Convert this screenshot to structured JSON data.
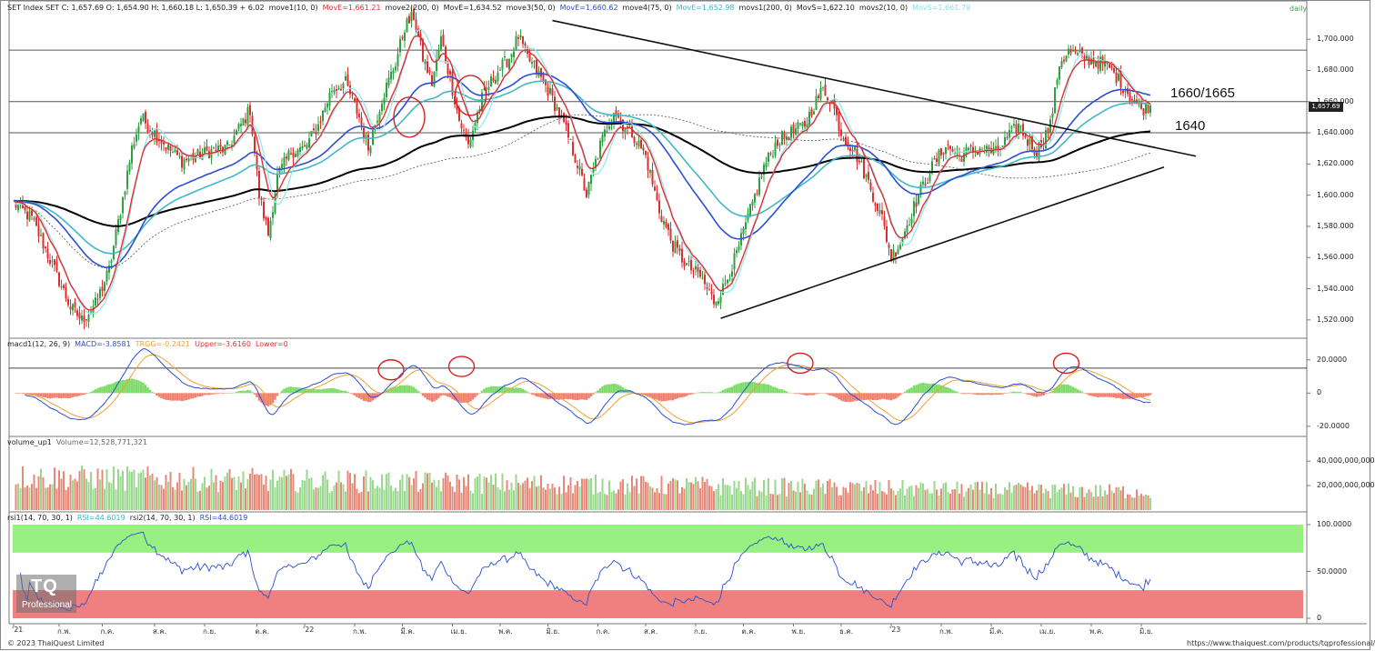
{
  "window": {
    "timeframe": "daily"
  },
  "headers": {
    "price": {
      "items": [
        {
          "text": "SET Index SET C: 1,657.69 O: 1,654.90 H: 1,660.18 L: 1,650.39 + 6.02",
          "color": "#222222"
        },
        {
          "text": "move1(10, 0)",
          "color": "#222222"
        },
        {
          "text": "MovE=1,661.21",
          "color": "#e03030"
        },
        {
          "text": "move2(200, 0)",
          "color": "#222222"
        },
        {
          "text": "MovE=1,634.52",
          "color": "#222222"
        },
        {
          "text": "move3(50, 0)",
          "color": "#222222"
        },
        {
          "text": "MovE=1,660.62",
          "color": "#2a4fd0"
        },
        {
          "text": "move4(75, 0)",
          "color": "#222222"
        },
        {
          "text": "MovE=1,652.98",
          "color": "#3fb8c8"
        },
        {
          "text": "movs1(200, 0)",
          "color": "#222222"
        },
        {
          "text": "MovS=1,622.10",
          "color": "#222222"
        },
        {
          "text": "movs2(10, 0)",
          "color": "#222222"
        },
        {
          "text": "MovS=1,661.79",
          "color": "#7ee0f0"
        }
      ]
    },
    "macd": {
      "items": [
        {
          "text": "macd1(12, 26, 9)",
          "color": "#222222"
        },
        {
          "text": "MACD=-3.8581",
          "color": "#2a4fd0"
        },
        {
          "text": "TRGG=-0.2421",
          "color": "#f0a030"
        },
        {
          "text": "Upper=-3.6160",
          "color": "#e03030"
        },
        {
          "text": "Lower=0",
          "color": "#e03030"
        }
      ]
    },
    "volume": {
      "items": [
        {
          "text": "volume_up1",
          "color": "#222222"
        },
        {
          "text": "Volume=12,528,771,321",
          "color": "#666666"
        }
      ]
    },
    "rsi": {
      "items": [
        {
          "text": "rsi1(14, 70, 30, 1)",
          "color": "#222222"
        },
        {
          "text": "RSI=44.6019",
          "color": "#3fb8c8"
        },
        {
          "text": "rsi2(14, 70, 30, 1)",
          "color": "#222222"
        },
        {
          "text": "RSI=44.6019",
          "color": "#2a4fd0"
        }
      ]
    }
  },
  "last_price_badge": "1,657.69",
  "annotations": {
    "resistance": "1660/1665",
    "support": "1640"
  },
  "axes": {
    "price": [
      {
        "v": 1700,
        "label": "1,700.000"
      },
      {
        "v": 1680,
        "label": "1,680.000"
      },
      {
        "v": 1660,
        "label": "1,660.000"
      },
      {
        "v": 1640,
        "label": "1,640.000"
      },
      {
        "v": 1620,
        "label": "1,620.000"
      },
      {
        "v": 1600,
        "label": "1,600.000"
      },
      {
        "v": 1580,
        "label": "1,580.000"
      },
      {
        "v": 1560,
        "label": "1,560.000"
      },
      {
        "v": 1540,
        "label": "1,540.000"
      },
      {
        "v": 1520,
        "label": "1,520.000"
      }
    ],
    "macd": [
      {
        "v": 20,
        "label": "20.0000"
      },
      {
        "v": 0,
        "label": "0"
      },
      {
        "v": -20,
        "label": "-20.0000"
      }
    ],
    "volume": [
      {
        "v": 40000000000,
        "label": "40,000,000,000"
      },
      {
        "v": 20000000000,
        "label": "20,000,000,000"
      }
    ],
    "rsi": [
      {
        "v": 100,
        "label": "100.0000"
      },
      {
        "v": 50,
        "label": "50.0000"
      },
      {
        "v": 0,
        "label": "0"
      }
    ],
    "x": [
      {
        "i": 0,
        "label": "'21"
      },
      {
        "i": 20,
        "label": "ก.พ."
      },
      {
        "i": 39,
        "label": "ก.ค."
      },
      {
        "i": 62,
        "label": "ส.ค."
      },
      {
        "i": 84,
        "label": "ก.ย."
      },
      {
        "i": 107,
        "label": "ต.ค."
      },
      {
        "i": 128,
        "label": "'22"
      },
      {
        "i": 150,
        "label": "ก.พ."
      },
      {
        "i": 171,
        "label": "มี.ค."
      },
      {
        "i": 193,
        "label": "เม.ย."
      },
      {
        "i": 214,
        "label": "พ.ค."
      },
      {
        "i": 235,
        "label": "มิ.ย."
      },
      {
        "i": 257,
        "label": "ก.ค."
      },
      {
        "i": 278,
        "label": "ส.ค."
      },
      {
        "i": 300,
        "label": "ก.ย."
      },
      {
        "i": 321,
        "label": "ต.ค."
      },
      {
        "i": 343,
        "label": "พ.ย."
      },
      {
        "i": 364,
        "label": "ธ.ค."
      },
      {
        "i": 386,
        "label": "'23"
      },
      {
        "i": 408,
        "label": "ก.พ."
      },
      {
        "i": 430,
        "label": "มี.ค."
      },
      {
        "i": 452,
        "label": "เม.ย."
      },
      {
        "i": 474,
        "label": "พ.ค."
      },
      {
        "i": 496,
        "label": "มิ.ย."
      }
    ]
  },
  "footer": {
    "left": "© 2023 ThaiQuest Limited",
    "right": "https://www.thaiquest.com/products/tqprofessional/"
  },
  "logo": {
    "big": "TQ",
    "small": "Professional"
  },
  "colors": {
    "up": "#2ea043",
    "down": "#d93030",
    "ma_red": "#e03030",
    "ma_blue": "#2a4fd0",
    "ma_cyan": "#3fb8c8",
    "ma_lightcyan": "#8ee6f4",
    "ma_black": "#000000",
    "macd_line": "#2a4fd0",
    "signal_line": "#f0a030",
    "hist_pos": "#7fdc6a",
    "hist_neg": "#f08070",
    "vol_up": "#9ad890",
    "vol_down": "#e88878",
    "rsi_line": "#2a4fd0",
    "ob_band": "#98f080",
    "os_band": "#f08080"
  },
  "chart_data": {
    "type": "candlestick",
    "instrument": "SET Index",
    "timeframe": "daily",
    "price_range": [
      1510,
      1717
    ],
    "price_anchors": [
      [
        0,
        1595
      ],
      [
        8,
        1585
      ],
      [
        18,
        1552
      ],
      [
        25,
        1528
      ],
      [
        30,
        1520
      ],
      [
        36,
        1530
      ],
      [
        42,
        1552
      ],
      [
        48,
        1598
      ],
      [
        52,
        1630
      ],
      [
        56,
        1650
      ],
      [
        62,
        1640
      ],
      [
        68,
        1630
      ],
      [
        74,
        1622
      ],
      [
        80,
        1625
      ],
      [
        86,
        1628
      ],
      [
        94,
        1630
      ],
      [
        100,
        1645
      ],
      [
        104,
        1655
      ],
      [
        108,
        1600
      ],
      [
        112,
        1575
      ],
      [
        116,
        1612
      ],
      [
        122,
        1628
      ],
      [
        128,
        1630
      ],
      [
        134,
        1645
      ],
      [
        140,
        1668
      ],
      [
        146,
        1672
      ],
      [
        152,
        1650
      ],
      [
        156,
        1630
      ],
      [
        162,
        1662
      ],
      [
        168,
        1685
      ],
      [
        172,
        1708
      ],
      [
        176,
        1715
      ],
      [
        180,
        1688
      ],
      [
        184,
        1672
      ],
      [
        188,
        1700
      ],
      [
        192,
        1675
      ],
      [
        196,
        1648
      ],
      [
        200,
        1632
      ],
      [
        206,
        1662
      ],
      [
        212,
        1678
      ],
      [
        218,
        1688
      ],
      [
        222,
        1702
      ],
      [
        226,
        1688
      ],
      [
        230,
        1680
      ],
      [
        236,
        1665
      ],
      [
        242,
        1645
      ],
      [
        248,
        1620
      ],
      [
        252,
        1600
      ],
      [
        258,
        1632
      ],
      [
        264,
        1655
      ],
      [
        268,
        1645
      ],
      [
        272,
        1640
      ],
      [
        278,
        1625
      ],
      [
        284,
        1590
      ],
      [
        290,
        1568
      ],
      [
        296,
        1555
      ],
      [
        302,
        1548
      ],
      [
        308,
        1532
      ],
      [
        312,
        1540
      ],
      [
        318,
        1562
      ],
      [
        324,
        1590
      ],
      [
        330,
        1618
      ],
      [
        336,
        1635
      ],
      [
        342,
        1640
      ],
      [
        348,
        1645
      ],
      [
        352,
        1658
      ],
      [
        356,
        1668
      ],
      [
        360,
        1660
      ],
      [
        364,
        1640
      ],
      [
        370,
        1628
      ],
      [
        376,
        1608
      ],
      [
        382,
        1585
      ],
      [
        386,
        1560
      ],
      [
        390,
        1570
      ],
      [
        394,
        1585
      ],
      [
        398,
        1600
      ],
      [
        404,
        1618
      ],
      [
        410,
        1632
      ],
      [
        416,
        1625
      ],
      [
        420,
        1628
      ],
      [
        426,
        1630
      ],
      [
        432,
        1627
      ],
      [
        438,
        1638
      ],
      [
        442,
        1645
      ],
      [
        446,
        1635
      ],
      [
        450,
        1628
      ],
      [
        456,
        1645
      ],
      [
        460,
        1685
      ],
      [
        464,
        1692
      ],
      [
        470,
        1688
      ],
      [
        476,
        1686
      ],
      [
        482,
        1682
      ],
      [
        488,
        1670
      ],
      [
        492,
        1662
      ],
      [
        496,
        1655
      ],
      [
        500,
        1657.69
      ]
    ],
    "bars": 500,
    "moving_averages": [
      {
        "name": "MovE 10",
        "value": 1661.21
      },
      {
        "name": "MovE 200",
        "value": 1634.52
      },
      {
        "name": "MovE 50",
        "value": 1660.62
      },
      {
        "name": "MovE 75",
        "value": 1652.98
      },
      {
        "name": "MovS 200",
        "value": 1622.1
      },
      {
        "name": "MovS 10",
        "value": 1661.79
      }
    ],
    "horizontal_levels": [
      1693,
      1660,
      1640
    ],
    "trendlines": [
      {
        "from": [
          237,
          1712
        ],
        "to": [
          520,
          1625
        ]
      },
      {
        "from": [
          311,
          1521
        ],
        "to": [
          506,
          1618
        ]
      }
    ],
    "circles": [
      {
        "pane": "price",
        "i": 174,
        "v": 1650
      },
      {
        "pane": "price",
        "i": 201,
        "v": 1664
      },
      {
        "pane": "macd",
        "i": 166,
        "v": 14
      },
      {
        "pane": "macd",
        "i": 197,
        "v": 16
      },
      {
        "pane": "macd",
        "i": 346,
        "v": 18
      },
      {
        "pane": "macd",
        "i": 463,
        "v": 18
      }
    ],
    "macd_last": {
      "macd": -3.8581,
      "signal": -0.2421
    },
    "volume_last": 12528771321,
    "rsi_last": 44.6019,
    "rsi_levels": [
      70,
      30
    ]
  }
}
